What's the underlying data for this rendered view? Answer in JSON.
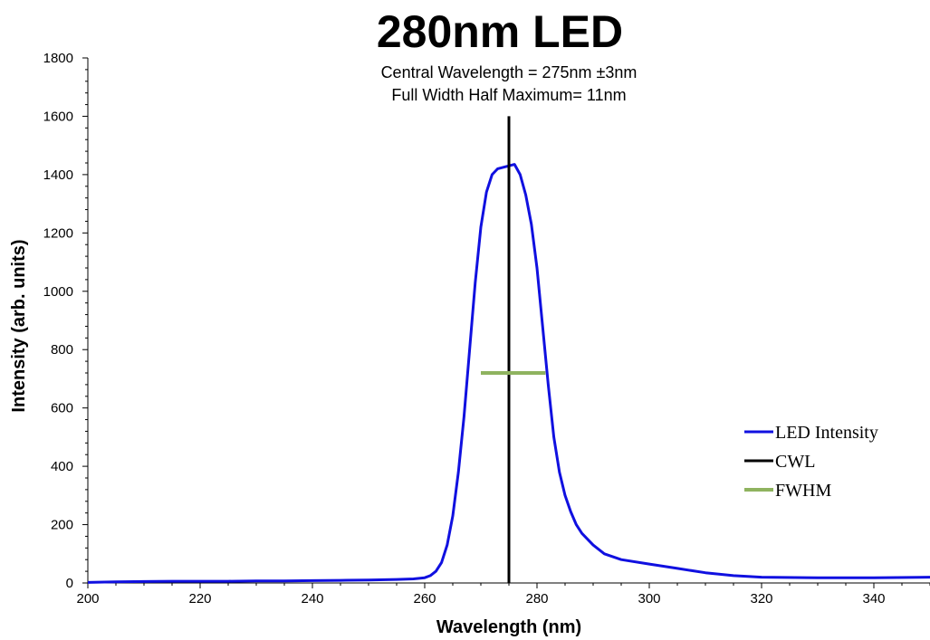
{
  "chart_data": {
    "type": "line",
    "title": "280nm LED",
    "subtitle_lines": [
      "Central Wavelength  = 275nm ±3nm",
      "Full Width Half Maximum= 11nm"
    ],
    "xlabel": "Wavelength (nm)",
    "ylabel": "Intensity (arb. units)",
    "xlim": [
      200,
      350
    ],
    "ylim": [
      0,
      1800
    ],
    "xticks": [
      200,
      220,
      240,
      260,
      280,
      300,
      320,
      340
    ],
    "yticks": [
      0,
      200,
      400,
      600,
      800,
      1000,
      1200,
      1400,
      1600,
      1800
    ],
    "legend_position": "right",
    "series": [
      {
        "name": "LED Intensity",
        "color": "#1010e0",
        "x": [
          200,
          205,
          210,
          215,
          220,
          225,
          230,
          235,
          240,
          245,
          250,
          255,
          258,
          260,
          261,
          262,
          263,
          264,
          265,
          266,
          267,
          268,
          269,
          270,
          271,
          272,
          273,
          274,
          275,
          276,
          277,
          278,
          279,
          280,
          281,
          282,
          283,
          284,
          285,
          286,
          287,
          288,
          290,
          292,
          295,
          300,
          305,
          310,
          315,
          320,
          330,
          340,
          350
        ],
        "y": [
          2,
          4,
          5,
          6,
          6,
          6,
          7,
          7,
          8,
          9,
          10,
          12,
          14,
          18,
          25,
          40,
          70,
          130,
          230,
          380,
          570,
          800,
          1030,
          1220,
          1340,
          1400,
          1420,
          1425,
          1430,
          1435,
          1400,
          1330,
          1230,
          1080,
          880,
          680,
          500,
          380,
          300,
          245,
          200,
          170,
          130,
          100,
          80,
          65,
          50,
          35,
          25,
          20,
          18,
          18,
          20
        ]
      },
      {
        "name": "CWL",
        "color": "#000000",
        "x": [
          275,
          275
        ],
        "y": [
          0,
          1600
        ]
      },
      {
        "name": "FWHM",
        "color": "#8fb35f",
        "x": [
          270,
          281.5
        ],
        "y": [
          720,
          720
        ]
      }
    ]
  }
}
